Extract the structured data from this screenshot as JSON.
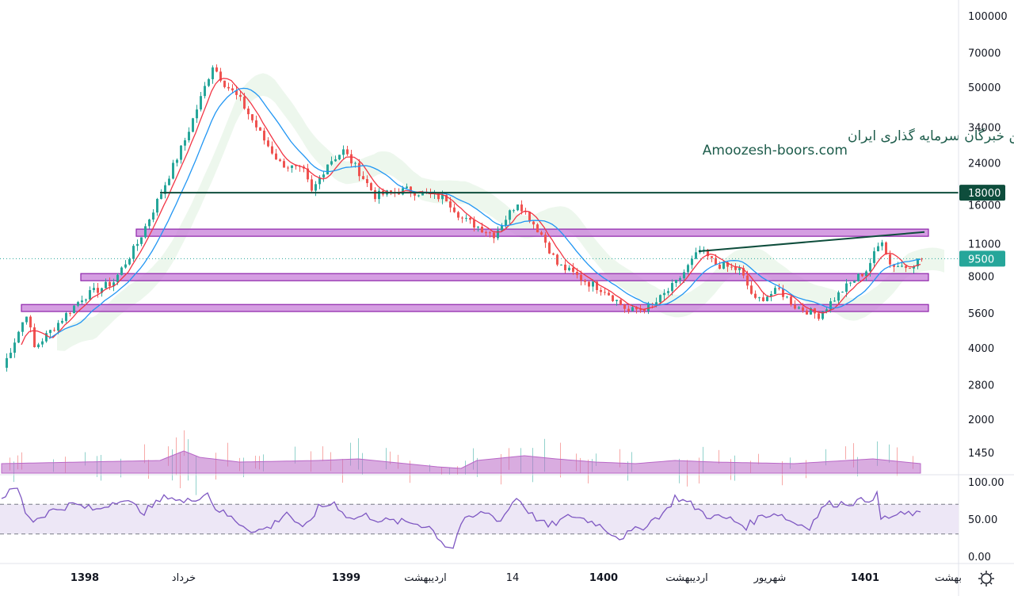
{
  "chart_data": {
    "type": "candlestick",
    "title": "",
    "scale": "log",
    "ylim": [
      1450,
      100000
    ],
    "price_ticks": [
      100000,
      70000,
      50000,
      34000,
      24000,
      16000,
      11000,
      8000,
      5600,
      4000,
      2800,
      2000,
      1450
    ],
    "price_tick_labels": [
      "100000",
      "70000",
      "50000",
      "34000",
      "24000",
      "16000",
      "11000",
      "8000",
      "5600",
      "4000",
      "2800",
      "2000",
      "1450"
    ],
    "last_price": {
      "value": 9500,
      "label": "9500",
      "color": "#26a69a"
    },
    "level_line": {
      "value": 18000,
      "label": "18000",
      "color": "#0e4d3c",
      "from_bar": 40
    },
    "zones": [
      {
        "name": "zone-upper",
        "low": 11800,
        "high": 12650,
        "from_bar": 34,
        "to_bar": 234
      },
      {
        "name": "zone-middle",
        "low": 7670,
        "high": 8220,
        "from_bar": 20,
        "to_bar": 234
      },
      {
        "name": "zone-lower",
        "low": 5690,
        "high": 6090,
        "from_bar": 5,
        "to_bar": 234
      }
    ],
    "trend_line": {
      "from": [
        176,
        10200
      ],
      "to": [
        233,
        12300
      ],
      "color": "#0e4d3c"
    },
    "x_unit": "bar (week)",
    "close_keypoints": [
      [
        0,
        3300
      ],
      [
        6,
        5600
      ],
      [
        8,
        4000
      ],
      [
        12,
        4700
      ],
      [
        20,
        6500
      ],
      [
        28,
        7600
      ],
      [
        34,
        11000
      ],
      [
        40,
        18000
      ],
      [
        46,
        30000
      ],
      [
        50,
        45000
      ],
      [
        53,
        62000
      ],
      [
        56,
        52000
      ],
      [
        60,
        44000
      ],
      [
        66,
        30000
      ],
      [
        70,
        24000
      ],
      [
        76,
        22000
      ],
      [
        78,
        18000
      ],
      [
        82,
        24000
      ],
      [
        86,
        27000
      ],
      [
        90,
        22000
      ],
      [
        94,
        17500
      ],
      [
        102,
        18500
      ],
      [
        112,
        17000
      ],
      [
        116,
        14000
      ],
      [
        124,
        12000
      ],
      [
        130,
        16500
      ],
      [
        136,
        12000
      ],
      [
        140,
        9000
      ],
      [
        148,
        7500
      ],
      [
        152,
        7000
      ],
      [
        158,
        5700
      ],
      [
        164,
        6000
      ],
      [
        170,
        7500
      ],
      [
        176,
        10300
      ],
      [
        180,
        9000
      ],
      [
        186,
        8500
      ],
      [
        190,
        6300
      ],
      [
        196,
        7000
      ],
      [
        200,
        6000
      ],
      [
        206,
        5500
      ],
      [
        212,
        7000
      ],
      [
        218,
        8500
      ],
      [
        222,
        11500
      ],
      [
        224,
        9000
      ],
      [
        228,
        8800
      ],
      [
        232,
        9500
      ]
    ],
    "volume_keypoints": [
      [
        0,
        0.3
      ],
      [
        20,
        0.35
      ],
      [
        40,
        0.4
      ],
      [
        46,
        0.7
      ],
      [
        50,
        0.5
      ],
      [
        60,
        0.35
      ],
      [
        80,
        0.4
      ],
      [
        90,
        0.45
      ],
      [
        110,
        0.2
      ],
      [
        116,
        0.15
      ],
      [
        120,
        0.4
      ],
      [
        132,
        0.55
      ],
      [
        140,
        0.45
      ],
      [
        150,
        0.35
      ],
      [
        160,
        0.3
      ],
      [
        170,
        0.4
      ],
      [
        180,
        0.35
      ],
      [
        200,
        0.3
      ],
      [
        220,
        0.45
      ],
      [
        232,
        0.3
      ]
    ],
    "moving_averages": [
      {
        "name": "MA-short",
        "period": 5,
        "color": "#f23645"
      },
      {
        "name": "MA-long",
        "period": 12,
        "color": "#2196f3"
      }
    ],
    "rsi": {
      "ticks": [
        "100.00",
        "50.00",
        "0.00"
      ],
      "upper_band": 70,
      "lower_band": 30,
      "keypoints": [
        [
          0,
          80
        ],
        [
          4,
          92
        ],
        [
          6,
          60
        ],
        [
          8,
          48
        ],
        [
          12,
          60
        ],
        [
          18,
          70
        ],
        [
          24,
          62
        ],
        [
          30,
          78
        ],
        [
          36,
          60
        ],
        [
          42,
          82
        ],
        [
          46,
          72
        ],
        [
          52,
          85
        ],
        [
          54,
          65
        ],
        [
          60,
          45
        ],
        [
          64,
          33
        ],
        [
          68,
          40
        ],
        [
          72,
          60
        ],
        [
          76,
          35
        ],
        [
          80,
          65
        ],
        [
          84,
          72
        ],
        [
          88,
          50
        ],
        [
          92,
          55
        ],
        [
          96,
          48
        ],
        [
          104,
          45
        ],
        [
          108,
          40
        ],
        [
          112,
          15
        ],
        [
          114,
          12
        ],
        [
          116,
          45
        ],
        [
          122,
          60
        ],
        [
          126,
          48
        ],
        [
          130,
          80
        ],
        [
          134,
          55
        ],
        [
          138,
          40
        ],
        [
          144,
          55
        ],
        [
          150,
          45
        ],
        [
          156,
          25
        ],
        [
          162,
          40
        ],
        [
          168,
          62
        ],
        [
          170,
          80
        ],
        [
          174,
          70
        ],
        [
          178,
          55
        ],
        [
          184,
          50
        ],
        [
          188,
          40
        ],
        [
          192,
          55
        ],
        [
          196,
          58
        ],
        [
          200,
          45
        ],
        [
          204,
          40
        ],
        [
          208,
          70
        ],
        [
          214,
          72
        ],
        [
          218,
          75
        ],
        [
          221,
          82
        ],
        [
          222,
          50
        ],
        [
          226,
          55
        ],
        [
          230,
          58
        ],
        [
          232,
          55
        ]
      ]
    },
    "time_labels": [
      {
        "bar": 21,
        "label": "1398",
        "bold": true
      },
      {
        "bar": 46,
        "label": "خرداد",
        "bold": false
      },
      {
        "bar": 87,
        "label": "1399",
        "bold": true
      },
      {
        "bar": 107,
        "label": "اردیبهشت",
        "bold": false
      },
      {
        "bar": 129,
        "label": "14",
        "bold": false
      },
      {
        "bar": 152,
        "label": "1400",
        "bold": true
      },
      {
        "bar": 173,
        "label": "اردیبهشت",
        "bold": false
      },
      {
        "bar": 194,
        "label": "شهریور",
        "bold": false
      },
      {
        "bar": 218,
        "label": "1401",
        "bold": true
      },
      {
        "bar": 239,
        "label": "بهشت",
        "bold": false
      }
    ],
    "colors": {
      "up": "#26a69a",
      "down": "#ef5350",
      "zone_fill": "#c77dd8",
      "zone_stroke": "#8e24aa",
      "volume": "#b968c7",
      "rsi_line": "#7e57c2",
      "rsi_band": "#ede7f6"
    }
  },
  "watermark": {
    "line1": "انجمن خبرگان سرمایه گذاری ایران",
    "line2": "Amoozesh-boors.com"
  },
  "settings_icon": "gear-icon"
}
